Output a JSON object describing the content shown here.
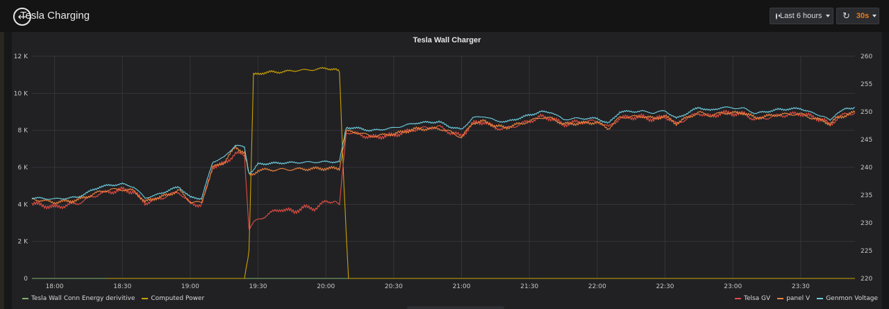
{
  "header": {
    "dashboard_title": "Tesla Charging",
    "back_icon": "arrow-left-circle-icon",
    "time_range_label": "Last 6 hours",
    "refresh_interval": "30s",
    "accent_color": "#eb7b18"
  },
  "panel": {
    "title": "Tesla Wall Charger"
  },
  "chart_data": {
    "type": "line",
    "title": "Tesla Wall Charger",
    "x_ticks": [
      "18:00",
      "18:30",
      "19:00",
      "19:30",
      "20:00",
      "20:30",
      "21:00",
      "21:30",
      "22:00",
      "22:30",
      "23:00",
      "23:30"
    ],
    "x_range_minutes": [
      -10,
      354
    ],
    "y_left": {
      "ticks": [
        "0",
        "2 K",
        "4 K",
        "6 K",
        "8 K",
        "10 K",
        "12 K"
      ],
      "range": [
        0,
        12000
      ]
    },
    "y_right": {
      "ticks": [
        "220",
        "225",
        "230",
        "235",
        "240",
        "245",
        "250",
        "255",
        "260"
      ],
      "range": [
        220,
        260
      ]
    },
    "grid": true,
    "legend_placement": "bottom",
    "series": [
      {
        "name": "Tesla Wall Conn Energy derivitive",
        "axis": "left",
        "color": "#7eb26d",
        "points": [
          [
            -10,
            0
          ],
          [
            354,
            0
          ]
        ]
      },
      {
        "name": "Computed Power",
        "axis": "left",
        "color": "#cca300",
        "points": [
          [
            23,
            0
          ],
          [
            25,
            0
          ],
          [
            84,
            0
          ],
          [
            86,
            1500
          ],
          [
            88,
            11000
          ],
          [
            90,
            11050
          ],
          [
            92,
            11100
          ],
          [
            96,
            11150
          ],
          [
            100,
            11150
          ],
          [
            104,
            11200
          ],
          [
            108,
            11250
          ],
          [
            112,
            11250
          ],
          [
            116,
            11300
          ],
          [
            120,
            11350
          ],
          [
            124,
            11300
          ],
          [
            126,
            11150
          ],
          [
            128,
            5000
          ],
          [
            130,
            0
          ],
          [
            354,
            0
          ]
        ]
      },
      {
        "name": "Telsa GV",
        "axis": "right",
        "color": "#e24d42",
        "points": [
          [
            -10,
            233.5
          ],
          [
            0,
            232.8
          ],
          [
            10,
            233.5
          ],
          [
            20,
            235.3
          ],
          [
            25,
            235.6
          ],
          [
            30,
            236
          ],
          [
            35,
            235.6
          ],
          [
            40,
            233.6
          ],
          [
            45,
            234.2
          ],
          [
            50,
            234.9
          ],
          [
            55,
            235.6
          ],
          [
            60,
            233.5
          ],
          [
            65,
            233.2
          ],
          [
            70,
            240.2
          ],
          [
            75,
            240.6
          ],
          [
            80,
            242.5
          ],
          [
            84,
            242.2
          ],
          [
            86,
            229
          ],
          [
            88,
            230
          ],
          [
            94,
            231.5
          ],
          [
            100,
            232.5
          ],
          [
            106,
            232
          ],
          [
            110,
            232.8
          ],
          [
            115,
            232.6
          ],
          [
            120,
            233.8
          ],
          [
            124,
            234
          ],
          [
            126,
            233
          ],
          [
            129,
            246.4
          ],
          [
            135,
            245.9
          ],
          [
            140,
            245.4
          ],
          [
            150,
            245.8
          ],
          [
            160,
            246.9
          ],
          [
            170,
            247.3
          ],
          [
            175,
            246.3
          ],
          [
            180,
            245.6
          ],
          [
            185,
            247.9
          ],
          [
            190,
            248.2
          ],
          [
            195,
            247.1
          ],
          [
            200,
            247
          ],
          [
            210,
            248.3
          ],
          [
            215,
            249.1
          ],
          [
            220,
            248.8
          ],
          [
            225,
            247.7
          ],
          [
            230,
            248.1
          ],
          [
            240,
            248.3
          ],
          [
            245,
            247.2
          ],
          [
            250,
            248.9
          ],
          [
            260,
            249.1
          ],
          [
            265,
            248.6
          ],
          [
            270,
            249.2
          ],
          [
            275,
            247.8
          ],
          [
            280,
            248.9
          ],
          [
            285,
            249.8
          ],
          [
            290,
            249.1
          ],
          [
            295,
            249.8
          ],
          [
            305,
            249.6
          ],
          [
            310,
            248.6
          ],
          [
            320,
            249.3
          ],
          [
            330,
            249.7
          ],
          [
            335,
            249.1
          ],
          [
            340,
            248.5
          ],
          [
            343,
            247.6
          ],
          [
            346,
            248.8
          ],
          [
            350,
            249.6
          ],
          [
            354,
            249.8
          ]
        ]
      },
      {
        "name": "panel V",
        "axis": "right",
        "color": "#ef843c",
        "points": [
          [
            -10,
            234.3
          ],
          [
            0,
            233.7
          ],
          [
            10,
            234.1
          ],
          [
            20,
            235.6
          ],
          [
            25,
            236
          ],
          [
            30,
            236
          ],
          [
            35,
            235.8
          ],
          [
            40,
            233.8
          ],
          [
            45,
            234.5
          ],
          [
            50,
            235
          ],
          [
            55,
            235.9
          ],
          [
            60,
            233.8
          ],
          [
            65,
            233.6
          ],
          [
            70,
            240
          ],
          [
            75,
            240.9
          ],
          [
            80,
            243.7
          ],
          [
            84,
            242.6
          ],
          [
            86,
            238.6
          ],
          [
            88,
            238.8
          ],
          [
            90,
            239.5
          ],
          [
            100,
            239.6
          ],
          [
            110,
            239.7
          ],
          [
            120,
            239.8
          ],
          [
            126,
            239.8
          ],
          [
            129,
            246.5
          ],
          [
            135,
            246.2
          ],
          [
            140,
            245.6
          ],
          [
            150,
            246
          ],
          [
            160,
            246.9
          ],
          [
            170,
            247
          ],
          [
            175,
            246.4
          ],
          [
            180,
            245.4
          ],
          [
            185,
            248
          ],
          [
            190,
            248.3
          ],
          [
            195,
            247.4
          ],
          [
            200,
            247.2
          ],
          [
            210,
            248.3
          ],
          [
            215,
            249
          ],
          [
            220,
            248.8
          ],
          [
            225,
            247.8
          ],
          [
            230,
            247.9
          ],
          [
            240,
            248.1
          ],
          [
            245,
            247
          ],
          [
            250,
            249
          ],
          [
            260,
            249.2
          ],
          [
            265,
            248.8
          ],
          [
            270,
            249.2
          ],
          [
            275,
            247.9
          ],
          [
            280,
            249
          ],
          [
            285,
            249.9
          ],
          [
            290,
            249.3
          ],
          [
            295,
            249.8
          ],
          [
            305,
            249.8
          ],
          [
            310,
            248.9
          ],
          [
            320,
            249.5
          ],
          [
            330,
            249.6
          ],
          [
            335,
            248.9
          ],
          [
            340,
            248.4
          ],
          [
            343,
            247.8
          ],
          [
            346,
            248.9
          ],
          [
            350,
            249.4
          ],
          [
            354,
            249.9
          ]
        ]
      },
      {
        "name": "Genmon Voltage",
        "axis": "right",
        "color": "#6ed0e0",
        "points": [
          [
            -10,
            234.5
          ],
          [
            0,
            234.3
          ],
          [
            10,
            234.6
          ],
          [
            20,
            236.5
          ],
          [
            25,
            236.8
          ],
          [
            30,
            237
          ],
          [
            35,
            236.5
          ],
          [
            40,
            234.5
          ],
          [
            45,
            235
          ],
          [
            50,
            235.8
          ],
          [
            55,
            236.5
          ],
          [
            60,
            234.6
          ],
          [
            65,
            234.4
          ],
          [
            70,
            241
          ],
          [
            75,
            241.8
          ],
          [
            80,
            244
          ],
          [
            84,
            243.6
          ],
          [
            86,
            239
          ],
          [
            88,
            239.5
          ],
          [
            90,
            240.6
          ],
          [
            100,
            240.8
          ],
          [
            110,
            240.9
          ],
          [
            120,
            241
          ],
          [
            126,
            241
          ],
          [
            129,
            247.2
          ],
          [
            135,
            247
          ],
          [
            140,
            246.6
          ],
          [
            150,
            247.1
          ],
          [
            160,
            248
          ],
          [
            170,
            248.2
          ],
          [
            175,
            247.3
          ],
          [
            180,
            246.8
          ],
          [
            185,
            248.9
          ],
          [
            190,
            249.2
          ],
          [
            195,
            248.4
          ],
          [
            200,
            248.2
          ],
          [
            210,
            249.4
          ],
          [
            215,
            250
          ],
          [
            220,
            249.9
          ],
          [
            225,
            248.6
          ],
          [
            230,
            248.8
          ],
          [
            240,
            248.8
          ],
          [
            245,
            247.9
          ],
          [
            250,
            250
          ],
          [
            260,
            250.1
          ],
          [
            265,
            249.8
          ],
          [
            270,
            250.2
          ],
          [
            275,
            248.8
          ],
          [
            280,
            249.8
          ],
          [
            285,
            250.8
          ],
          [
            290,
            250.2
          ],
          [
            295,
            250.8
          ],
          [
            305,
            250.6
          ],
          [
            310,
            249.7
          ],
          [
            320,
            250.4
          ],
          [
            330,
            250.6
          ],
          [
            335,
            249.8
          ],
          [
            340,
            249.2
          ],
          [
            343,
            248.4
          ],
          [
            346,
            249.8
          ],
          [
            350,
            250.5
          ],
          [
            354,
            250.8
          ]
        ]
      }
    ]
  }
}
